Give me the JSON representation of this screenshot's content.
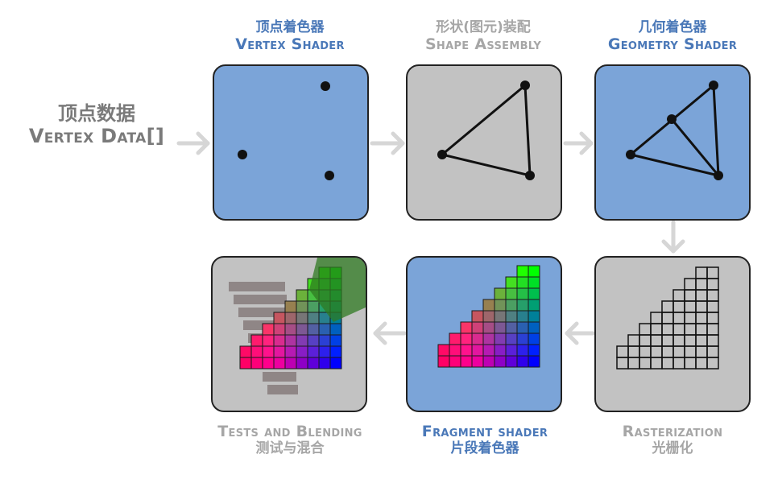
{
  "colors": {
    "blue_box": "#7ba4d8",
    "gray_box": "#c2c2c2",
    "blue_text": "#4a78b8",
    "gray_text": "#a6a6a6",
    "arrow": "#d6d6d6"
  },
  "input": {
    "cn": "顶点数据",
    "en": "Vertex Data[]"
  },
  "stages": {
    "vertex_shader": {
      "cn": "顶点着色器",
      "en": "Vertex Shader"
    },
    "shape_assembly": {
      "cn": "形状(图元)装配",
      "en": "Shape Assembly"
    },
    "geometry_shader": {
      "cn": "几何着色器",
      "en": "Geometry Shader"
    },
    "rasterization": {
      "cn": "光栅化",
      "en": "Rasterization"
    },
    "fragment_shader": {
      "cn": "片段着色器",
      "en": "Fragment shader"
    },
    "tests_blending": {
      "cn": "测试与混合",
      "en": "Tests and Blending"
    }
  }
}
